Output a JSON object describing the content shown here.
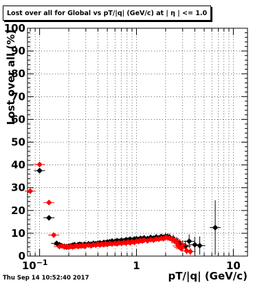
{
  "footer": "Thu Sep 14 10:52:40 2017",
  "colors": {
    "series_black": "#000000",
    "series_red": "#ff0000",
    "grid": "#000000"
  },
  "chart_data": {
    "type": "scatter",
    "title": "Lost over all for Global vs pT/|q| (GeV/c) at |  η | <= 1.0",
    "xlabel": "pT/|q| (GeV/c)",
    "ylabel": "Lost over all (%)",
    "xscale": "log",
    "xlim": [
      0.075,
      14.0
    ],
    "ylim": [
      0,
      100
    ],
    "grid": true,
    "legend": "none",
    "y_ticks": [
      0,
      10,
      20,
      30,
      40,
      50,
      60,
      70,
      80,
      90,
      100
    ],
    "x_tick_labels": [
      {
        "value": 0.1,
        "label": "10",
        "exponent": "−1"
      },
      {
        "value": 1,
        "label": "1"
      },
      {
        "value": 10,
        "label": "10"
      }
    ],
    "series": [
      {
        "color": "#000000",
        "x": [
          0.1,
          0.125,
          0.15,
          0.16,
          0.17,
          0.18,
          0.19,
          0.2,
          0.21,
          0.22,
          0.23,
          0.24,
          0.25,
          0.26,
          0.27,
          0.28,
          0.29,
          0.3,
          0.32,
          0.34,
          0.36,
          0.38,
          0.4,
          0.42,
          0.44,
          0.46,
          0.48,
          0.5,
          0.53,
          0.56,
          0.6,
          0.63,
          0.66,
          0.7,
          0.74,
          0.78,
          0.82,
          0.86,
          0.9,
          0.95,
          1.0,
          1.05,
          1.1,
          1.15,
          1.2,
          1.3,
          1.4,
          1.5,
          1.6,
          1.7,
          1.8,
          1.9,
          2.0,
          2.1,
          2.2,
          2.4,
          2.6,
          2.8,
          3.0,
          3.2,
          3.5,
          4.0,
          4.5,
          6.5
        ],
        "y": [
          37.5,
          16.8,
          5.6,
          5.0,
          4.5,
          4.3,
          4.0,
          4.3,
          4.5,
          4.8,
          5.0,
          4.6,
          5.0,
          5.2,
          5.0,
          4.8,
          5.2,
          5.0,
          5.4,
          5.2,
          5.6,
          5.4,
          5.6,
          5.8,
          5.5,
          6.0,
          5.8,
          6.2,
          6.3,
          6.6,
          6.4,
          6.8,
          6.5,
          7.0,
          6.7,
          7.2,
          7.0,
          7.4,
          7.0,
          7.5,
          7.6,
          7.3,
          7.8,
          7.5,
          8.0,
          7.7,
          8.2,
          7.9,
          8.4,
          8.0,
          8.6,
          8.2,
          8.7,
          8.5,
          8.3,
          7.6,
          6.4,
          5.4,
          4.7,
          4.3,
          6.5,
          5.0,
          4.6,
          12.5
        ],
        "y_err": [
          1.2,
          1.0,
          0.6,
          0.5,
          0.5,
          0.5,
          0.5,
          0.5,
          0.5,
          0.5,
          0.5,
          0.5,
          0.5,
          0.5,
          0.5,
          0.5,
          0.5,
          0.5,
          0.5,
          0.5,
          0.5,
          0.5,
          0.5,
          0.5,
          0.5,
          0.5,
          0.5,
          0.5,
          0.5,
          0.5,
          0.5,
          0.5,
          0.5,
          0.5,
          0.6,
          0.6,
          0.6,
          0.6,
          0.6,
          0.6,
          0.6,
          0.7,
          0.7,
          0.7,
          0.8,
          0.8,
          0.9,
          1.0,
          1.0,
          1.1,
          1.2,
          1.3,
          1.4,
          1.5,
          1.6,
          1.8,
          2.0,
          2.0,
          2.2,
          2.5,
          3.0,
          3.5,
          4.0,
          12.0
        ]
      },
      {
        "color": "#ff0000",
        "x": [
          0.08,
          0.1,
          0.125,
          0.14,
          0.16,
          0.17,
          0.18,
          0.19,
          0.2,
          0.21,
          0.22,
          0.23,
          0.24,
          0.25,
          0.26,
          0.27,
          0.28,
          0.29,
          0.3,
          0.32,
          0.34,
          0.36,
          0.38,
          0.4,
          0.42,
          0.44,
          0.46,
          0.48,
          0.5,
          0.53,
          0.56,
          0.6,
          0.63,
          0.66,
          0.7,
          0.74,
          0.78,
          0.82,
          0.86,
          0.9,
          0.95,
          1.0,
          1.05,
          1.1,
          1.15,
          1.2,
          1.3,
          1.4,
          1.5,
          1.6,
          1.7,
          1.8,
          1.9,
          2.0,
          2.1,
          2.2,
          2.3,
          2.4,
          2.5,
          2.6,
          2.7,
          2.8,
          2.9,
          3.0,
          3.3,
          3.6
        ],
        "y": [
          28.5,
          40.2,
          23.5,
          9.2,
          4.2,
          4.5,
          4.0,
          4.3,
          3.9,
          4.2,
          4.0,
          4.3,
          4.6,
          4.2,
          4.5,
          4.4,
          4.7,
          4.3,
          4.6,
          4.8,
          4.5,
          5.0,
          4.8,
          5.2,
          4.9,
          5.3,
          5.0,
          5.4,
          5.1,
          5.5,
          5.3,
          5.6,
          5.4,
          5.8,
          5.6,
          6.0,
          5.7,
          6.2,
          5.8,
          6.3,
          6.0,
          6.5,
          6.4,
          6.8,
          6.6,
          7.0,
          6.7,
          7.2,
          7.0,
          7.5,
          7.4,
          7.8,
          7.6,
          8.2,
          8.0,
          7.8,
          7.5,
          7.2,
          6.8,
          5.8,
          4.5,
          3.8,
          3.3,
          4.8,
          2.3,
          2.0
        ],
        "y_err": [
          0.8,
          1.0,
          0.9,
          0.5,
          0.3,
          0.3,
          0.3,
          0.3,
          0.3,
          0.3,
          0.3,
          0.3,
          0.3,
          0.3,
          0.3,
          0.3,
          0.3,
          0.3,
          0.3,
          0.3,
          0.3,
          0.3,
          0.3,
          0.3,
          0.3,
          0.3,
          0.3,
          0.3,
          0.3,
          0.3,
          0.3,
          0.3,
          0.3,
          0.3,
          0.3,
          0.3,
          0.3,
          0.3,
          0.3,
          0.3,
          0.3,
          0.4,
          0.4,
          0.4,
          0.4,
          0.4,
          0.5,
          0.5,
          0.5,
          0.6,
          0.6,
          0.7,
          0.7,
          0.8,
          0.8,
          0.9,
          0.9,
          1.0,
          1.0,
          1.1,
          1.1,
          1.2,
          1.3,
          1.4,
          1.5,
          1.6
        ]
      }
    ]
  }
}
